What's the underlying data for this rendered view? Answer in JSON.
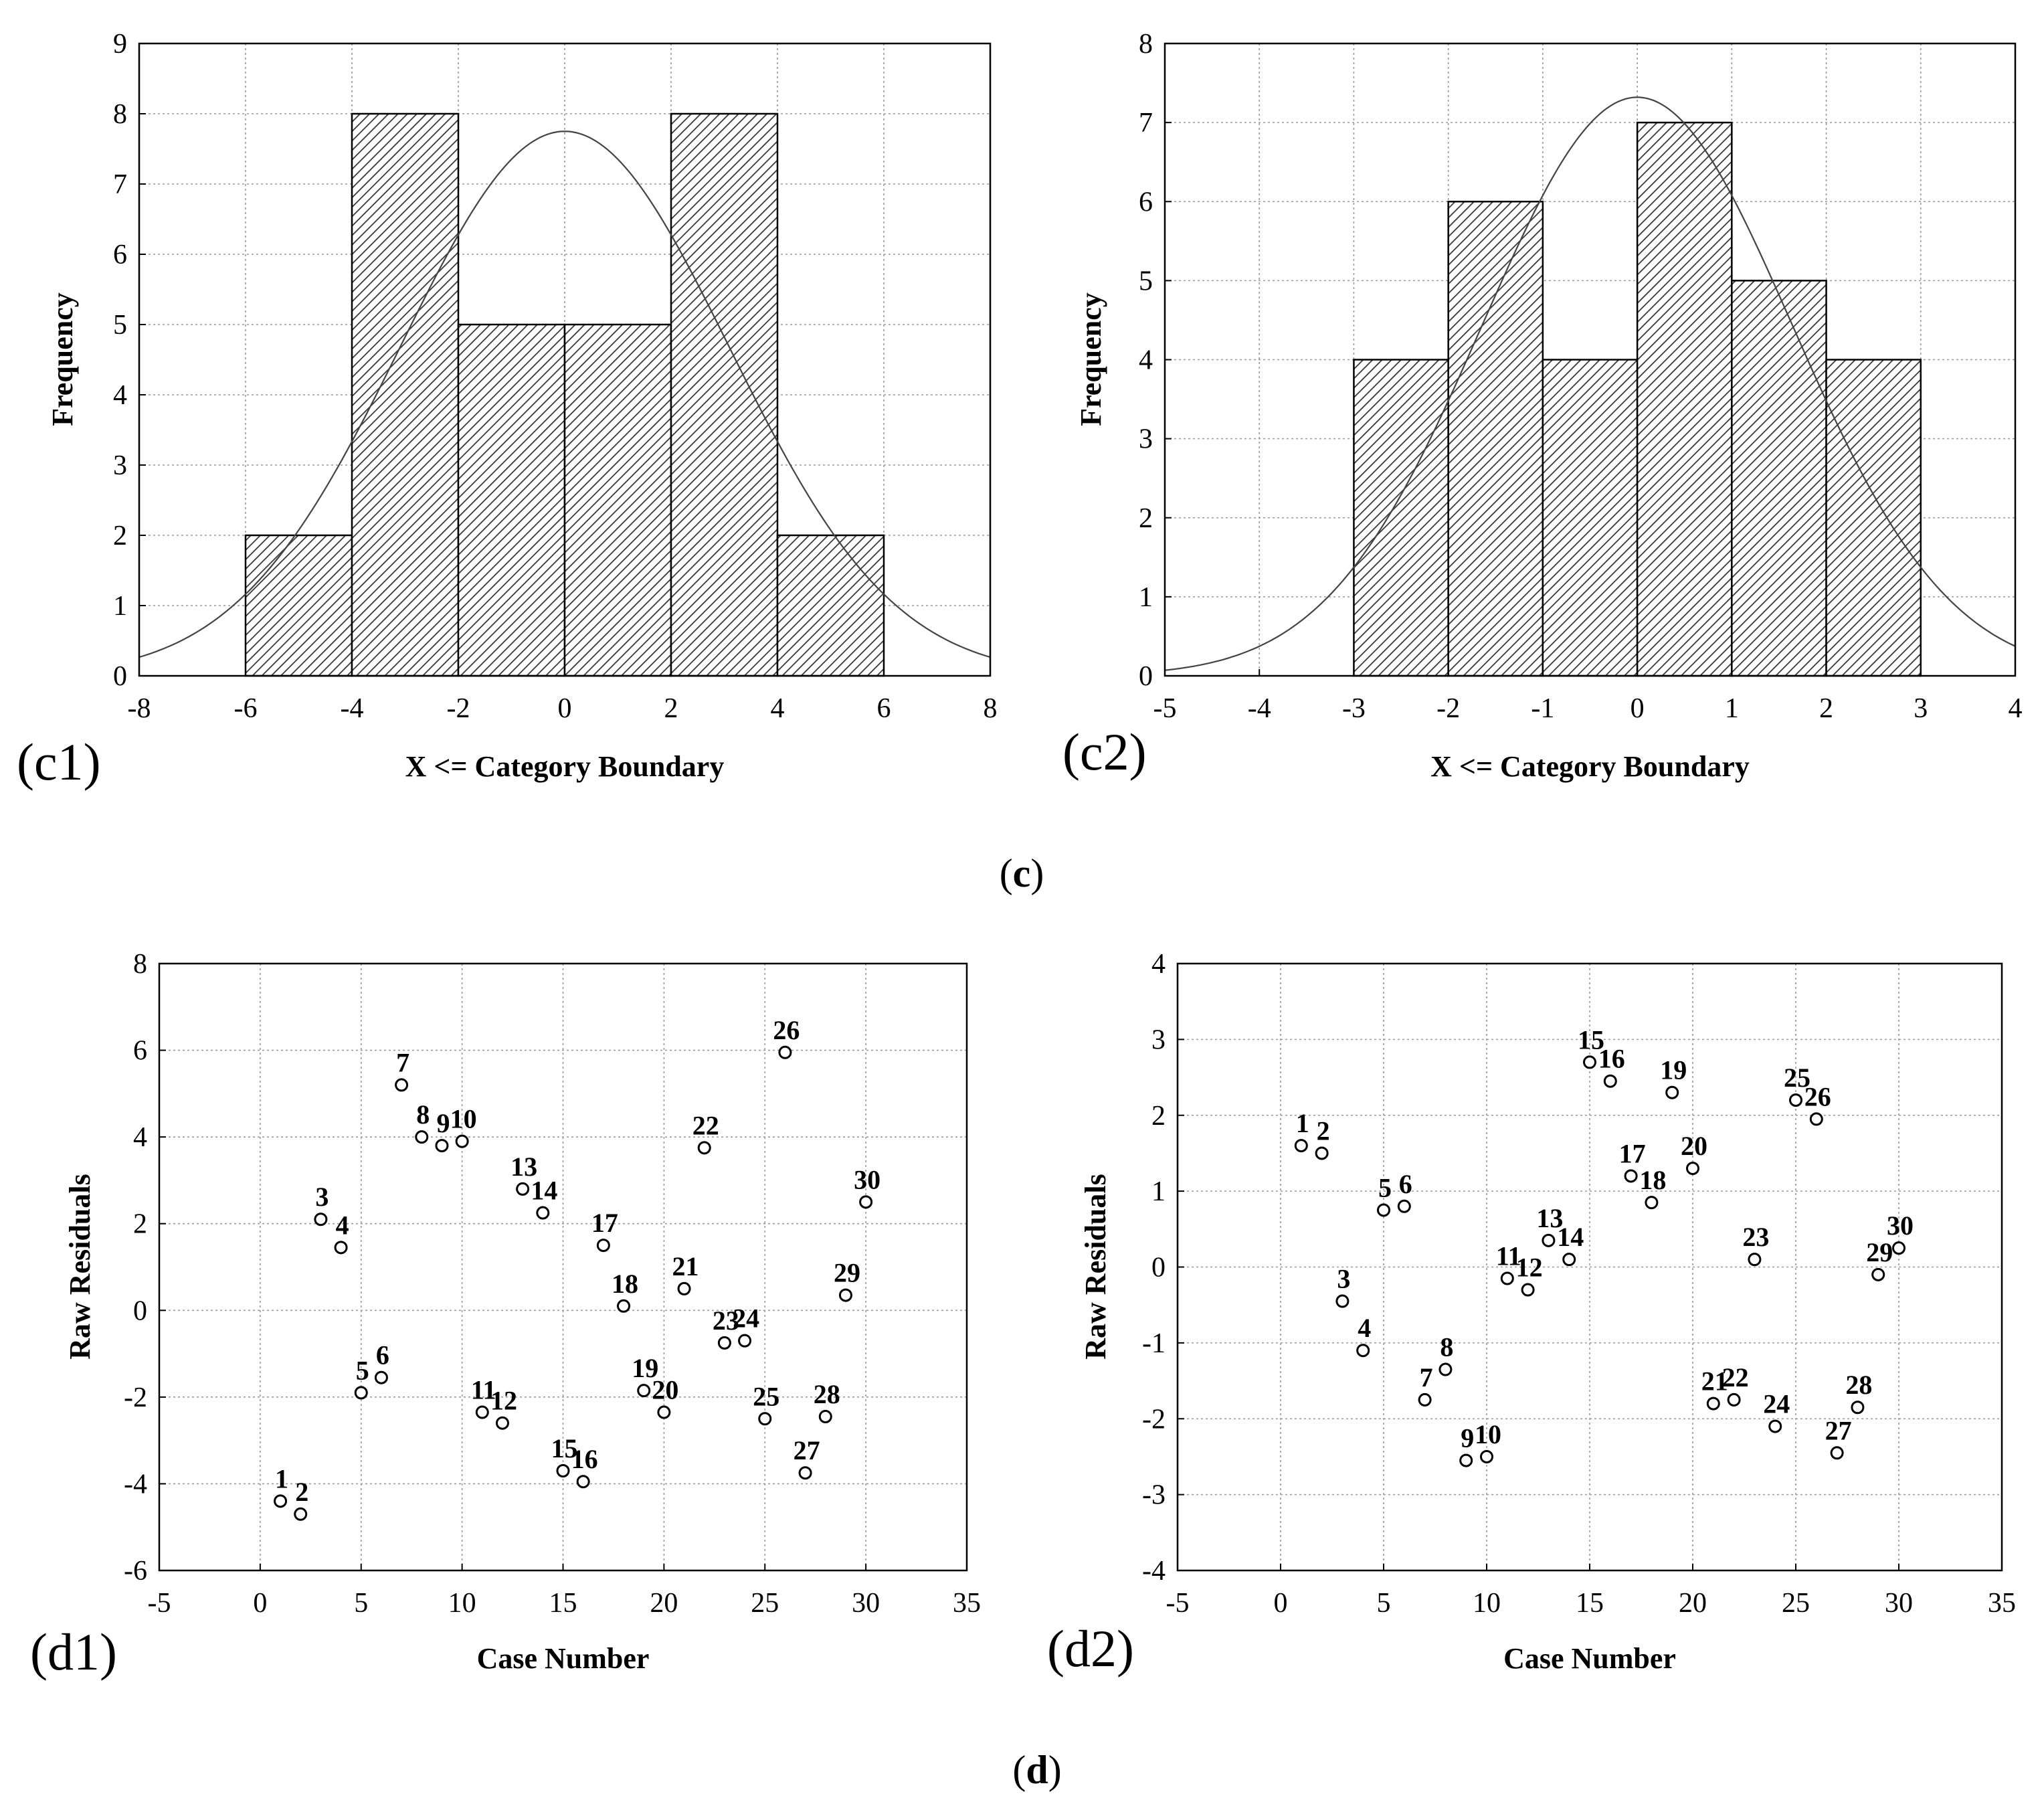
{
  "chart_data": [
    {
      "id": "c1",
      "panel_label": "(c1)",
      "type": "bar",
      "subtype": "histogram",
      "title": "",
      "xlabel": "X <= Category Boundary",
      "ylabel": "Frequency",
      "xlim": [
        -8,
        8
      ],
      "ylim": [
        0,
        9
      ],
      "xticks": [
        "-8",
        "-6",
        "-4",
        "-2",
        "0",
        "2",
        "4",
        "6",
        "8"
      ],
      "yticks": [
        "0",
        "1",
        "2",
        "3",
        "4",
        "5",
        "6",
        "7",
        "8",
        "9"
      ],
      "grid": true,
      "bins": [
        {
          "from": -6,
          "to": -4,
          "count": 2
        },
        {
          "from": -4,
          "to": -2,
          "count": 8
        },
        {
          "from": -2,
          "to": 0,
          "count": 5
        },
        {
          "from": 0,
          "to": 2,
          "count": 5
        },
        {
          "from": 2,
          "to": 4,
          "count": 8
        },
        {
          "from": 4,
          "to": 6,
          "count": 2
        }
      ],
      "normal_curve": {
        "mean": 0,
        "peak": 7.75,
        "sd": 3.08
      }
    },
    {
      "id": "c2",
      "panel_label": "(c2)",
      "type": "bar",
      "subtype": "histogram",
      "title": "",
      "xlabel": "X <= Category Boundary",
      "ylabel": "Frequency",
      "xlim": [
        -5,
        4
      ],
      "ylim": [
        0,
        8
      ],
      "xticks": [
        "-5",
        "-4",
        "-3",
        "-2",
        "-1",
        "0",
        "1",
        "2",
        "3",
        "4"
      ],
      "yticks": [
        "0",
        "1",
        "2",
        "3",
        "4",
        "5",
        "6",
        "7",
        "8"
      ],
      "grid": true,
      "bins": [
        {
          "from": -3,
          "to": -2,
          "count": 4
        },
        {
          "from": -2,
          "to": -1,
          "count": 6
        },
        {
          "from": -1,
          "to": 0,
          "count": 4
        },
        {
          "from": 0,
          "to": 1,
          "count": 7
        },
        {
          "from": 1,
          "to": 2,
          "count": 5
        },
        {
          "from": 2,
          "to": 3,
          "count": 4
        }
      ],
      "normal_curve": {
        "mean": 0,
        "peak": 7.32,
        "sd": 1.64
      }
    },
    {
      "id": "d1",
      "panel_label": "(d1)",
      "type": "scatter",
      "title": "",
      "xlabel": "Case Number",
      "ylabel": "Raw Residuals",
      "xlim": [
        -5,
        35
      ],
      "ylim": [
        -6,
        8
      ],
      "xticks": [
        "-5",
        "0",
        "5",
        "10",
        "15",
        "20",
        "25",
        "30",
        "35"
      ],
      "yticks": [
        "-6",
        "-4",
        "-2",
        "0",
        "2",
        "4",
        "6",
        "8"
      ],
      "grid": true,
      "points": [
        {
          "x": 1,
          "y": -4.4,
          "label": "1"
        },
        {
          "x": 2,
          "y": -4.7,
          "label": "2"
        },
        {
          "x": 3,
          "y": 2.1,
          "label": "3"
        },
        {
          "x": 4,
          "y": 1.45,
          "label": "4"
        },
        {
          "x": 5,
          "y": -1.9,
          "label": "5"
        },
        {
          "x": 6,
          "y": -1.55,
          "label": "6"
        },
        {
          "x": 7,
          "y": 5.2,
          "label": "7"
        },
        {
          "x": 8,
          "y": 4.0,
          "label": "8"
        },
        {
          "x": 9,
          "y": 3.8,
          "label": "9"
        },
        {
          "x": 10,
          "y": 3.9,
          "label": "10"
        },
        {
          "x": 11,
          "y": -2.35,
          "label": "11"
        },
        {
          "x": 12,
          "y": -2.6,
          "label": "12"
        },
        {
          "x": 13,
          "y": 2.8,
          "label": "13"
        },
        {
          "x": 14,
          "y": 2.25,
          "label": "14"
        },
        {
          "x": 15,
          "y": -3.7,
          "label": "15"
        },
        {
          "x": 16,
          "y": -3.95,
          "label": "16"
        },
        {
          "x": 17,
          "y": 1.5,
          "label": "17"
        },
        {
          "x": 18,
          "y": 0.1,
          "label": "18"
        },
        {
          "x": 19,
          "y": -1.85,
          "label": "19"
        },
        {
          "x": 20,
          "y": -2.35,
          "label": "20"
        },
        {
          "x": 21,
          "y": 0.5,
          "label": "21"
        },
        {
          "x": 22,
          "y": 3.75,
          "label": "22"
        },
        {
          "x": 23,
          "y": -0.75,
          "label": "23"
        },
        {
          "x": 24,
          "y": -0.7,
          "label": "24"
        },
        {
          "x": 25,
          "y": -2.5,
          "label": "25"
        },
        {
          "x": 26,
          "y": 5.95,
          "label": "26"
        },
        {
          "x": 27,
          "y": -3.75,
          "label": "27"
        },
        {
          "x": 28,
          "y": -2.45,
          "label": "28"
        },
        {
          "x": 29,
          "y": 0.35,
          "label": "29"
        },
        {
          "x": 30,
          "y": 2.5,
          "label": "30"
        }
      ]
    },
    {
      "id": "d2",
      "panel_label": "(d2)",
      "type": "scatter",
      "title": "",
      "xlabel": "Case Number",
      "ylabel": "Raw Residuals",
      "xlim": [
        -5,
        35
      ],
      "ylim": [
        -4,
        4
      ],
      "xticks": [
        "-5",
        "0",
        "5",
        "10",
        "15",
        "20",
        "25",
        "30",
        "35"
      ],
      "yticks": [
        "-4",
        "-3",
        "-2",
        "-1",
        "0",
        "1",
        "2",
        "3",
        "4"
      ],
      "grid": true,
      "points": [
        {
          "x": 1,
          "y": 1.6,
          "label": "1"
        },
        {
          "x": 2,
          "y": 1.5,
          "label": "2"
        },
        {
          "x": 3,
          "y": -0.45,
          "label": "3"
        },
        {
          "x": 4,
          "y": -1.1,
          "label": "4"
        },
        {
          "x": 5,
          "y": 0.75,
          "label": "5"
        },
        {
          "x": 6,
          "y": 0.8,
          "label": "6"
        },
        {
          "x": 7,
          "y": -1.75,
          "label": "7"
        },
        {
          "x": 8,
          "y": -1.35,
          "label": "8"
        },
        {
          "x": 9,
          "y": -2.55,
          "label": "9"
        },
        {
          "x": 10,
          "y": -2.5,
          "label": "10"
        },
        {
          "x": 11,
          "y": -0.15,
          "label": "11"
        },
        {
          "x": 12,
          "y": -0.3,
          "label": "12"
        },
        {
          "x": 13,
          "y": 0.35,
          "label": "13"
        },
        {
          "x": 14,
          "y": 0.1,
          "label": "14"
        },
        {
          "x": 15,
          "y": 2.7,
          "label": "15"
        },
        {
          "x": 16,
          "y": 2.45,
          "label": "16"
        },
        {
          "x": 17,
          "y": 1.2,
          "label": "17"
        },
        {
          "x": 18,
          "y": 0.85,
          "label": "18"
        },
        {
          "x": 19,
          "y": 2.3,
          "label": "19"
        },
        {
          "x": 20,
          "y": 1.3,
          "label": "20"
        },
        {
          "x": 21,
          "y": -1.8,
          "label": "21"
        },
        {
          "x": 22,
          "y": -1.75,
          "label": "22"
        },
        {
          "x": 23,
          "y": 0.1,
          "label": "23"
        },
        {
          "x": 24,
          "y": -2.1,
          "label": "24"
        },
        {
          "x": 25,
          "y": 2.2,
          "label": "25"
        },
        {
          "x": 26,
          "y": 1.95,
          "label": "26"
        },
        {
          "x": 27,
          "y": -2.45,
          "label": "27"
        },
        {
          "x": 28,
          "y": -1.85,
          "label": "28"
        },
        {
          "x": 29,
          "y": -0.1,
          "label": "29"
        },
        {
          "x": 30,
          "y": 0.25,
          "label": "30"
        }
      ]
    }
  ],
  "sections": {
    "c": {
      "open": "(",
      "letter": "c",
      "close": ")"
    },
    "d": {
      "open": "(",
      "letter": "d",
      "close": ")"
    }
  }
}
